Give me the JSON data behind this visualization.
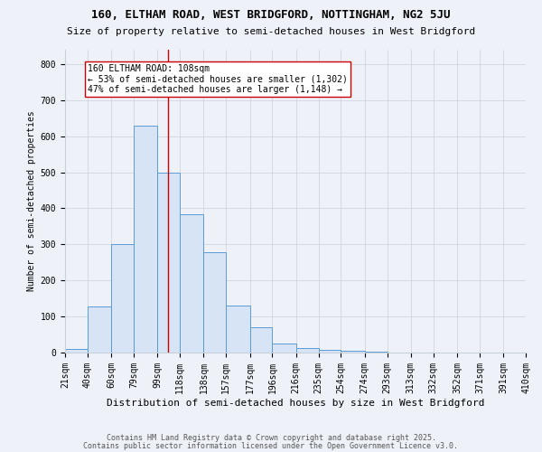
{
  "title1": "160, ELTHAM ROAD, WEST BRIDGFORD, NOTTINGHAM, NG2 5JU",
  "title2": "Size of property relative to semi-detached houses in West Bridgford",
  "xlabel": "Distribution of semi-detached houses by size in West Bridgford",
  "ylabel": "Number of semi-detached properties",
  "footnote1": "Contains HM Land Registry data © Crown copyright and database right 2025.",
  "footnote2": "Contains public sector information licensed under the Open Government Licence v3.0.",
  "bin_edges": [
    21,
    40,
    60,
    79,
    99,
    118,
    138,
    157,
    177,
    196,
    216,
    235,
    254,
    274,
    293,
    313,
    332,
    352,
    371,
    391,
    410
  ],
  "bin_labels": [
    "21sqm",
    "40sqm",
    "60sqm",
    "79sqm",
    "99sqm",
    "118sqm",
    "138sqm",
    "157sqm",
    "177sqm",
    "196sqm",
    "216sqm",
    "235sqm",
    "254sqm",
    "274sqm",
    "293sqm",
    "313sqm",
    "332sqm",
    "352sqm",
    "371sqm",
    "391sqm",
    "410sqm"
  ],
  "counts": [
    10,
    128,
    300,
    630,
    500,
    383,
    278,
    130,
    70,
    26,
    13,
    7,
    5,
    3,
    0,
    0,
    0,
    0,
    0,
    0
  ],
  "property_size": 108,
  "bar_face_color": "#d6e4f5",
  "bar_edge_color": "#5b9bd5",
  "vline_color": "#cc0000",
  "annotation_text": "160 ELTHAM ROAD: 108sqm\n← 53% of semi-detached houses are smaller (1,302)\n47% of semi-detached houses are larger (1,148) →",
  "annotation_box_color": "#ffffff",
  "annotation_box_edge": "#cc0000",
  "grid_color": "#c8d0dc",
  "background_color": "#eef2f8",
  "ylim": [
    0,
    840
  ],
  "title1_fontsize": 9,
  "title2_fontsize": 8,
  "xlabel_fontsize": 8,
  "ylabel_fontsize": 7,
  "tick_fontsize": 7,
  "annotation_fontsize": 7,
  "footnote_fontsize": 6
}
